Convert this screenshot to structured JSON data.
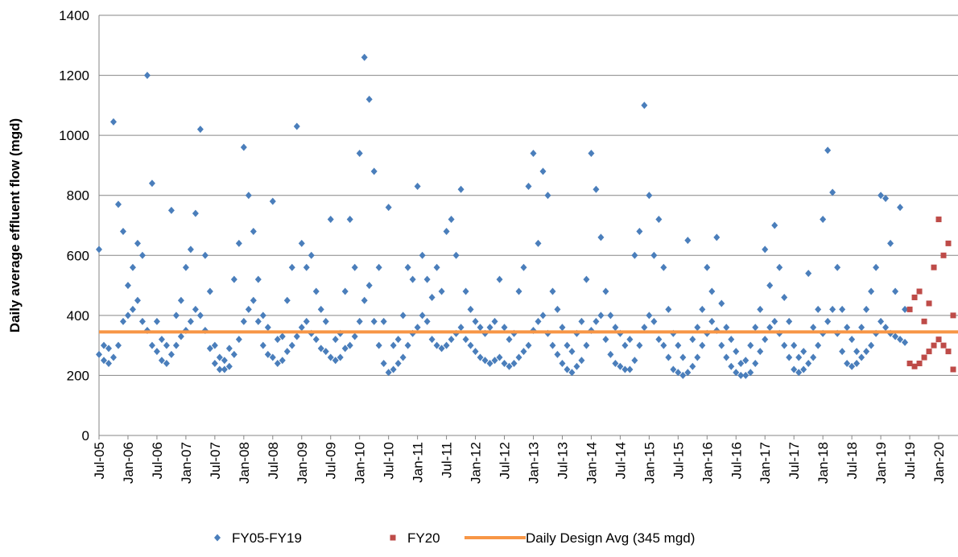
{
  "chart_data": {
    "type": "scatter",
    "y_label": "Daily average effluent flow (mgd)",
    "ylim": [
      0,
      1400
    ],
    "yticks": [
      0,
      200,
      400,
      600,
      800,
      1000,
      1200,
      1400
    ],
    "grid": true,
    "xlim": [
      "2005-07",
      "2020-05"
    ],
    "xticks": [
      {
        "value": "2005-07",
        "label": "Jul-05"
      },
      {
        "value": "2006-01",
        "label": "Jan-06"
      },
      {
        "value": "2006-07",
        "label": "Jul-06"
      },
      {
        "value": "2007-01",
        "label": "Jan-07"
      },
      {
        "value": "2007-07",
        "label": "Jul-07"
      },
      {
        "value": "2008-01",
        "label": "Jan-08"
      },
      {
        "value": "2008-07",
        "label": "Jul-08"
      },
      {
        "value": "2009-01",
        "label": "Jan-09"
      },
      {
        "value": "2009-07",
        "label": "Jul-09"
      },
      {
        "value": "2010-01",
        "label": "Jan-10"
      },
      {
        "value": "2010-07",
        "label": "Jul-10"
      },
      {
        "value": "2011-01",
        "label": "Jan-11"
      },
      {
        "value": "2011-07",
        "label": "Jul-11"
      },
      {
        "value": "2012-01",
        "label": "Jan-12"
      },
      {
        "value": "2012-07",
        "label": "Jul-12"
      },
      {
        "value": "2013-01",
        "label": "Jan-13"
      },
      {
        "value": "2013-07",
        "label": "Jul-13"
      },
      {
        "value": "2014-01",
        "label": "Jan-14"
      },
      {
        "value": "2014-07",
        "label": "Jul-14"
      },
      {
        "value": "2015-01",
        "label": "Jan-15"
      },
      {
        "value": "2015-07",
        "label": "Jul-15"
      },
      {
        "value": "2016-01",
        "label": "Jan-16"
      },
      {
        "value": "2016-07",
        "label": "Jul-16"
      },
      {
        "value": "2017-01",
        "label": "Jan-17"
      },
      {
        "value": "2017-07",
        "label": "Jul-17"
      },
      {
        "value": "2018-01",
        "label": "Jan-18"
      },
      {
        "value": "2018-07",
        "label": "Jul-18"
      },
      {
        "value": "2019-01",
        "label": "Jan-19"
      },
      {
        "value": "2019-07",
        "label": "Jul-19"
      },
      {
        "value": "2020-01",
        "label": "Jan-20"
      }
    ],
    "series": [
      {
        "name": "FY05-FY19",
        "color": "#4a7ebb",
        "marker": "diamond",
        "x": [
          "2005-07",
          "2005-07",
          "2005-08",
          "2005-08",
          "2005-09",
          "2005-09",
          "2005-10",
          "2005-10",
          "2005-11",
          "2005-11",
          "2005-12",
          "2005-12",
          "2006-01",
          "2006-01",
          "2006-02",
          "2006-02",
          "2006-03",
          "2006-03",
          "2006-04",
          "2006-04",
          "2006-05",
          "2006-05",
          "2006-06",
          "2006-06",
          "2006-07",
          "2006-07",
          "2006-08",
          "2006-08",
          "2006-09",
          "2006-09",
          "2006-10",
          "2006-10",
          "2006-11",
          "2006-11",
          "2006-12",
          "2006-12",
          "2007-01",
          "2007-01",
          "2007-02",
          "2007-02",
          "2007-03",
          "2007-03",
          "2007-04",
          "2007-04",
          "2007-05",
          "2007-05",
          "2007-06",
          "2007-06",
          "2007-07",
          "2007-07",
          "2007-08",
          "2007-08",
          "2007-09",
          "2007-09",
          "2007-10",
          "2007-10",
          "2007-11",
          "2007-11",
          "2007-12",
          "2007-12",
          "2008-01",
          "2008-01",
          "2008-02",
          "2008-02",
          "2008-03",
          "2008-03",
          "2008-04",
          "2008-04",
          "2008-05",
          "2008-05",
          "2008-06",
          "2008-06",
          "2008-07",
          "2008-07",
          "2008-08",
          "2008-08",
          "2008-09",
          "2008-09",
          "2008-10",
          "2008-10",
          "2008-11",
          "2008-11",
          "2008-12",
          "2008-12",
          "2009-01",
          "2009-01",
          "2009-02",
          "2009-02",
          "2009-03",
          "2009-03",
          "2009-04",
          "2009-04",
          "2009-05",
          "2009-05",
          "2009-06",
          "2009-06",
          "2009-07",
          "2009-07",
          "2009-08",
          "2009-08",
          "2009-09",
          "2009-09",
          "2009-10",
          "2009-10",
          "2009-11",
          "2009-11",
          "2009-12",
          "2009-12",
          "2010-01",
          "2010-01",
          "2010-02",
          "2010-02",
          "2010-03",
          "2010-03",
          "2010-04",
          "2010-04",
          "2010-05",
          "2010-05",
          "2010-06",
          "2010-06",
          "2010-07",
          "2010-07",
          "2010-08",
          "2010-08",
          "2010-09",
          "2010-09",
          "2010-10",
          "2010-10",
          "2010-11",
          "2010-11",
          "2010-12",
          "2010-12",
          "2011-01",
          "2011-01",
          "2011-02",
          "2011-02",
          "2011-03",
          "2011-03",
          "2011-04",
          "2011-04",
          "2011-05",
          "2011-05",
          "2011-06",
          "2011-06",
          "2011-07",
          "2011-07",
          "2011-08",
          "2011-08",
          "2011-09",
          "2011-09",
          "2011-10",
          "2011-10",
          "2011-11",
          "2011-11",
          "2011-12",
          "2011-12",
          "2012-01",
          "2012-01",
          "2012-02",
          "2012-02",
          "2012-03",
          "2012-03",
          "2012-04",
          "2012-04",
          "2012-05",
          "2012-05",
          "2012-06",
          "2012-06",
          "2012-07",
          "2012-07",
          "2012-08",
          "2012-08",
          "2012-09",
          "2012-09",
          "2012-10",
          "2012-10",
          "2012-11",
          "2012-11",
          "2012-12",
          "2012-12",
          "2013-01",
          "2013-01",
          "2013-02",
          "2013-02",
          "2013-03",
          "2013-03",
          "2013-04",
          "2013-04",
          "2013-05",
          "2013-05",
          "2013-06",
          "2013-06",
          "2013-07",
          "2013-07",
          "2013-08",
          "2013-08",
          "2013-09",
          "2013-09",
          "2013-10",
          "2013-10",
          "2013-11",
          "2013-11",
          "2013-12",
          "2013-12",
          "2014-01",
          "2014-01",
          "2014-02",
          "2014-02",
          "2014-03",
          "2014-03",
          "2014-04",
          "2014-04",
          "2014-05",
          "2014-05",
          "2014-06",
          "2014-06",
          "2014-07",
          "2014-07",
          "2014-08",
          "2014-08",
          "2014-09",
          "2014-09",
          "2014-10",
          "2014-10",
          "2014-11",
          "2014-11",
          "2014-12",
          "2014-12",
          "2015-01",
          "2015-01",
          "2015-02",
          "2015-02",
          "2015-03",
          "2015-03",
          "2015-04",
          "2015-04",
          "2015-05",
          "2015-05",
          "2015-06",
          "2015-06",
          "2015-07",
          "2015-07",
          "2015-08",
          "2015-08",
          "2015-09",
          "2015-09",
          "2015-10",
          "2015-10",
          "2015-11",
          "2015-11",
          "2015-12",
          "2015-12",
          "2016-01",
          "2016-01",
          "2016-02",
          "2016-02",
          "2016-03",
          "2016-03",
          "2016-04",
          "2016-04",
          "2016-05",
          "2016-05",
          "2016-06",
          "2016-06",
          "2016-07",
          "2016-07",
          "2016-08",
          "2016-08",
          "2016-09",
          "2016-09",
          "2016-10",
          "2016-10",
          "2016-11",
          "2016-11",
          "2016-12",
          "2016-12",
          "2017-01",
          "2017-01",
          "2017-02",
          "2017-02",
          "2017-03",
          "2017-03",
          "2017-04",
          "2017-04",
          "2017-05",
          "2017-05",
          "2017-06",
          "2017-06",
          "2017-07",
          "2017-07",
          "2017-08",
          "2017-08",
          "2017-09",
          "2017-09",
          "2017-10",
          "2017-10",
          "2017-11",
          "2017-11",
          "2017-12",
          "2017-12",
          "2018-01",
          "2018-01",
          "2018-02",
          "2018-02",
          "2018-03",
          "2018-03",
          "2018-04",
          "2018-04",
          "2018-05",
          "2018-05",
          "2018-06",
          "2018-06",
          "2018-07",
          "2018-07",
          "2018-08",
          "2018-08",
          "2018-09",
          "2018-09",
          "2018-10",
          "2018-10",
          "2018-11",
          "2018-11",
          "2018-12",
          "2018-12",
          "2019-01",
          "2019-01",
          "2019-02",
          "2019-02",
          "2019-03",
          "2019-03",
          "2019-04",
          "2019-04",
          "2019-05",
          "2019-05",
          "2019-06",
          "2019-06"
        ],
        "values": [
          270,
          620,
          250,
          300,
          240,
          290,
          260,
          1045,
          300,
          770,
          380,
          680,
          400,
          500,
          420,
          560,
          450,
          640,
          380,
          600,
          350,
          1200,
          300,
          840,
          280,
          380,
          250,
          320,
          240,
          300,
          270,
          750,
          300,
          400,
          330,
          450,
          350,
          560,
          380,
          620,
          420,
          740,
          400,
          1020,
          350,
          600,
          290,
          480,
          240,
          300,
          220,
          260,
          220,
          250,
          230,
          290,
          270,
          520,
          320,
          640,
          380,
          960,
          420,
          800,
          450,
          680,
          380,
          520,
          300,
          400,
          270,
          360,
          260,
          780,
          240,
          320,
          250,
          330,
          280,
          450,
          300,
          560,
          330,
          1030,
          360,
          640,
          380,
          560,
          340,
          600,
          320,
          480,
          290,
          420,
          280,
          380,
          260,
          720,
          250,
          320,
          260,
          340,
          290,
          480,
          300,
          720,
          330,
          560,
          380,
          940,
          450,
          1260,
          500,
          1120,
          380,
          880,
          300,
          560,
          240,
          380,
          210,
          760,
          220,
          300,
          240,
          320,
          260,
          400,
          300,
          560,
          340,
          520,
          360,
          830,
          400,
          600,
          380,
          520,
          320,
          460,
          300,
          560,
          290,
          480,
          300,
          680,
          320,
          720,
          340,
          600,
          360,
          820,
          320,
          480,
          300,
          420,
          280,
          380,
          260,
          360,
          250,
          340,
          240,
          360,
          250,
          380,
          260,
          520,
          240,
          360,
          230,
          320,
          240,
          340,
          260,
          480,
          280,
          560,
          300,
          830,
          350,
          940,
          380,
          640,
          400,
          880,
          340,
          800,
          300,
          480,
          270,
          420,
          240,
          360,
          220,
          300,
          210,
          280,
          230,
          340,
          250,
          380,
          300,
          520,
          350,
          940,
          380,
          820,
          400,
          660,
          320,
          480,
          270,
          400,
          240,
          360,
          230,
          340,
          220,
          300,
          220,
          320,
          250,
          600,
          300,
          680,
          360,
          1100,
          400,
          800,
          380,
          600,
          320,
          720,
          300,
          560,
          260,
          420,
          220,
          340,
          210,
          300,
          200,
          260,
          210,
          650,
          230,
          320,
          260,
          360,
          300,
          420,
          340,
          560,
          380,
          480,
          350,
          660,
          300,
          440,
          260,
          360,
          230,
          320,
          210,
          280,
          200,
          240,
          200,
          250,
          210,
          300,
          240,
          360,
          280,
          420,
          320,
          620,
          360,
          500,
          380,
          700,
          340,
          560,
          300,
          460,
          260,
          380,
          220,
          300,
          210,
          260,
          220,
          280,
          240,
          540,
          260,
          360,
          300,
          420,
          340,
          720,
          380,
          950,
          420,
          810,
          340,
          560,
          280,
          420,
          240,
          360,
          230,
          320,
          240,
          280,
          260,
          360,
          280,
          420,
          300,
          480,
          340,
          560,
          380,
          800,
          360,
          790,
          340,
          640,
          330,
          480,
          320,
          760,
          310,
          420
        ]
      },
      {
        "name": "FY20",
        "color": "#be4b48",
        "marker": "square",
        "x": [
          "2019-07",
          "2019-07",
          "2019-08",
          "2019-08",
          "2019-09",
          "2019-09",
          "2019-10",
          "2019-10",
          "2019-11",
          "2019-11",
          "2019-12",
          "2019-12",
          "2020-01",
          "2020-01",
          "2020-02",
          "2020-02",
          "2020-03",
          "2020-03",
          "2020-04",
          "2020-04"
        ],
        "values": [
          240,
          420,
          230,
          460,
          240,
          480,
          260,
          380,
          280,
          440,
          300,
          560,
          320,
          720,
          300,
          600,
          280,
          640,
          220,
          400
        ]
      }
    ],
    "reference_line": {
      "name": "Daily Design Avg (345 mgd)",
      "value": 345,
      "color": "#f79646"
    }
  }
}
